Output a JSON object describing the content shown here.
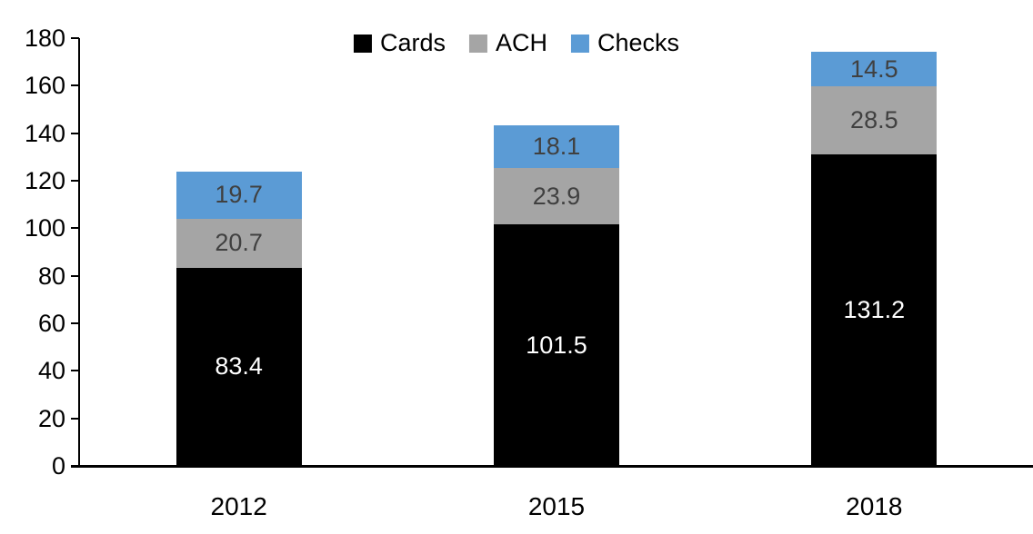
{
  "chart_data": {
    "type": "bar",
    "stacked": true,
    "title": "",
    "xlabel": "",
    "ylabel": "",
    "categories": [
      "2012",
      "2015",
      "2018"
    ],
    "series": [
      {
        "name": "Cards",
        "color": "#000000",
        "label_color": "#ffffff",
        "values": [
          83.4,
          101.5,
          131.2
        ]
      },
      {
        "name": "ACH",
        "color": "#a5a5a5",
        "label_color": "#404040",
        "values": [
          20.7,
          23.9,
          28.5
        ]
      },
      {
        "name": "Checks",
        "color": "#5b9bd5",
        "label_color": "#404040",
        "values": [
          19.7,
          18.1,
          14.5
        ]
      }
    ],
    "ylim": [
      0,
      180
    ],
    "ytick_step": 20,
    "ytick_labels": [
      "0",
      "20",
      "40",
      "60",
      "80",
      "100",
      "120",
      "140",
      "160",
      "180"
    ],
    "grid": false,
    "legend_position": "top-center",
    "axis_color": "#000000"
  }
}
